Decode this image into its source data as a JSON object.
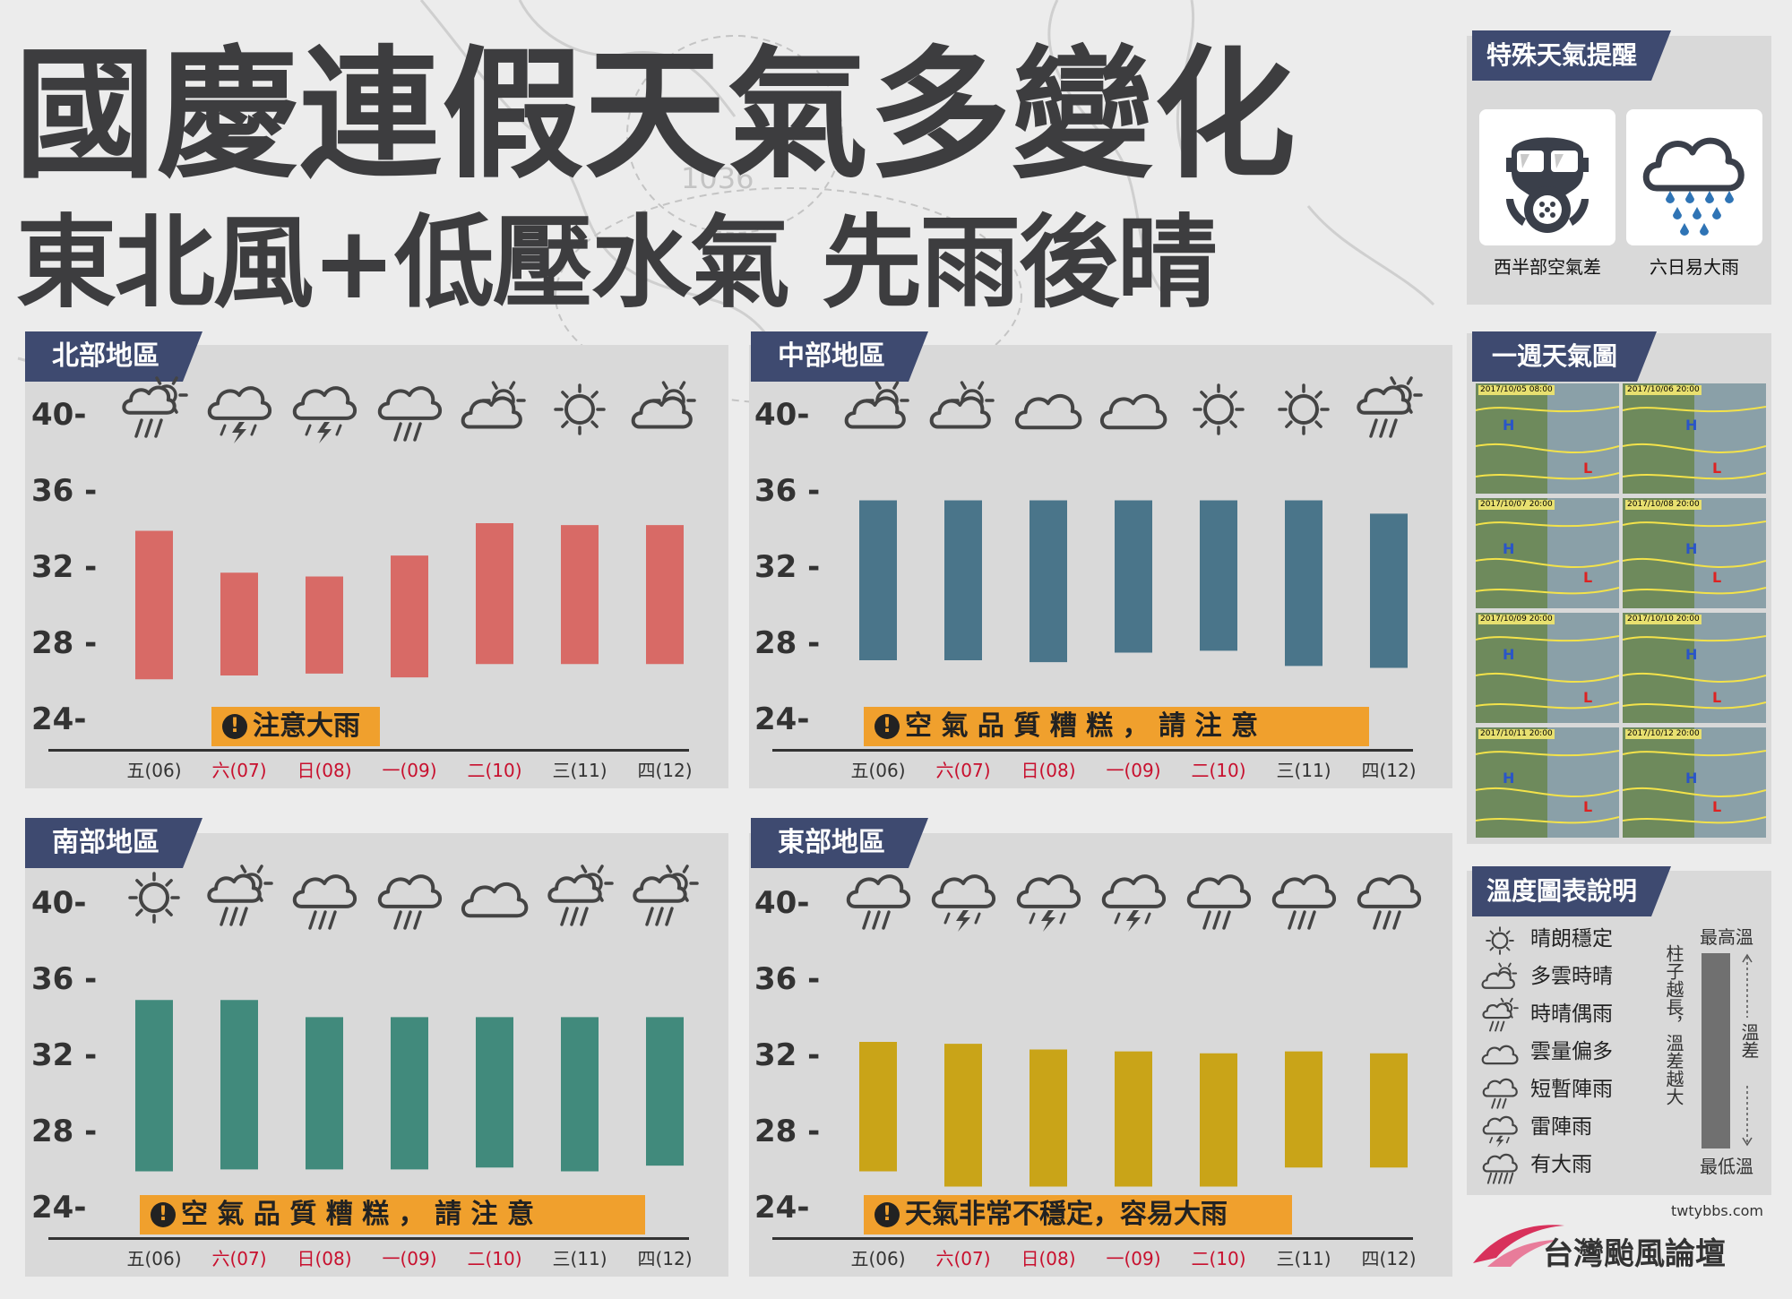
{
  "title": "國慶連假天氣多變化",
  "subtitle": "東北風+低壓水氣 先雨後晴",
  "colors": {
    "north": "#d86a66",
    "central": "#4a758a",
    "south": "#418a7c",
    "east": "#c9a418",
    "tag_bg": "#3e4a70",
    "warning_bg": "#f0a02d",
    "weekend_label": "#c8102e"
  },
  "special_alerts": {
    "title": "特殊天氣提醒",
    "items": [
      {
        "icon": "gas-mask-icon",
        "label": "西半部空氣差"
      },
      {
        "icon": "heavy-rain-cloud-icon",
        "label": "六日易大雨"
      }
    ]
  },
  "weekly_map": {
    "title": "一週天氣圖",
    "dates": [
      "2017/10/05 08:00",
      "2017/10/06 20:00",
      "2017/10/07 20:00",
      "2017/10/08 20:00",
      "2017/10/09 20:00",
      "2017/10/10 20:00",
      "2017/10/11 20:00",
      "2017/10/12 20:00"
    ]
  },
  "legend": {
    "title": "溫度圖表說明",
    "items": [
      {
        "icon": "sunny-icon",
        "label": "晴朗穩定"
      },
      {
        "icon": "partly-cloudy-icon",
        "label": "多雲時晴"
      },
      {
        "icon": "sun-shower-icon",
        "label": "時晴偶雨"
      },
      {
        "icon": "cloudy-icon",
        "label": "雲量偏多"
      },
      {
        "icon": "shower-icon",
        "label": "短暫陣雨"
      },
      {
        "icon": "thunderstorm-icon",
        "label": "雷陣雨"
      },
      {
        "icon": "heavy-rain-icon",
        "label": "有大雨"
      }
    ],
    "max_label": "最高溫",
    "min_label": "最低溫",
    "vertical_note": "柱子越長，溫差越大",
    "range_label": "溫差"
  },
  "branding": {
    "site": "twtybbs.com",
    "name": "台灣颱風論壇"
  },
  "chart_data": [
    {
      "type": "bar",
      "region": "北部地區",
      "color": "#d86a66",
      "categories": [
        "五(06)",
        "六(07)",
        "日(08)",
        "一(09)",
        "二(10)",
        "三(11)",
        "四(12)"
      ],
      "weekend": [
        false,
        true,
        true,
        true,
        true,
        false,
        false
      ],
      "y_ticks": [
        "24-",
        "28 -",
        "32 -",
        "36 -",
        "40-"
      ],
      "ylim": [
        24,
        40
      ],
      "series": [
        {
          "low": [
            26.2,
            26.4,
            26.5,
            26.3,
            27.0,
            27.0,
            27.0
          ],
          "high": [
            34.0,
            31.8,
            31.6,
            32.7,
            34.4,
            34.3,
            34.3
          ]
        }
      ],
      "weather_icons": [
        "sun-shower-icon",
        "thunderstorm-icon",
        "thunderstorm-icon",
        "shower-icon",
        "partly-cloudy-icon",
        "sunny-icon",
        "partly-cloudy-icon"
      ],
      "warning": "注意大雨"
    },
    {
      "type": "bar",
      "region": "中部地區",
      "color": "#4a758a",
      "categories": [
        "五(06)",
        "六(07)",
        "日(08)",
        "一(09)",
        "二(10)",
        "三(11)",
        "四(12)"
      ],
      "weekend": [
        false,
        true,
        true,
        true,
        true,
        false,
        false
      ],
      "y_ticks": [
        "24-",
        "28 -",
        "32 -",
        "36 -",
        "40-"
      ],
      "ylim": [
        24,
        40
      ],
      "series": [
        {
          "low": [
            27.2,
            27.2,
            27.1,
            27.6,
            27.7,
            26.9,
            26.8
          ],
          "high": [
            35.6,
            35.6,
            35.6,
            35.6,
            35.6,
            35.6,
            34.9
          ]
        }
      ],
      "weather_icons": [
        "partly-cloudy-icon",
        "partly-cloudy-icon",
        "cloudy-icon",
        "cloudy-icon",
        "sunny-icon",
        "sunny-icon",
        "sun-shower-icon"
      ],
      "warning": "空 氣 品 質 糟 糕 ， 請 注 意"
    },
    {
      "type": "bar",
      "region": "南部地區",
      "color": "#418a7c",
      "categories": [
        "五(06)",
        "六(07)",
        "日(08)",
        "一(09)",
        "二(10)",
        "三(11)",
        "四(12)"
      ],
      "weekend": [
        false,
        true,
        true,
        true,
        true,
        false,
        false
      ],
      "y_ticks": [
        "24-",
        "28 -",
        "32 -",
        "36 -",
        "40-"
      ],
      "ylim": [
        24,
        40
      ],
      "series": [
        {
          "low": [
            26.0,
            26.1,
            26.1,
            26.1,
            26.2,
            26.0,
            26.3
          ],
          "high": [
            35.0,
            35.0,
            34.1,
            34.1,
            34.1,
            34.1,
            34.1
          ]
        }
      ],
      "weather_icons": [
        "sunny-icon",
        "sun-shower-icon",
        "shower-icon",
        "shower-icon",
        "cloudy-icon",
        "sun-shower-icon",
        "sun-shower-icon"
      ],
      "warning": "空 氣 品 質 糟 糕 ， 請 注 意"
    },
    {
      "type": "bar",
      "region": "東部地區",
      "color": "#c9a418",
      "categories": [
        "五(06)",
        "六(07)",
        "日(08)",
        "一(09)",
        "二(10)",
        "三(11)",
        "四(12)"
      ],
      "weekend": [
        false,
        true,
        true,
        true,
        true,
        false,
        false
      ],
      "y_ticks": [
        "24-",
        "28 -",
        "32 -",
        "36 -",
        "40-"
      ],
      "ylim": [
        24,
        40
      ],
      "series": [
        {
          "low": [
            26.0,
            25.2,
            25.2,
            25.2,
            25.2,
            26.2,
            26.2
          ],
          "high": [
            32.8,
            32.7,
            32.4,
            32.3,
            32.2,
            32.3,
            32.2
          ]
        }
      ],
      "weather_icons": [
        "shower-icon",
        "thunderstorm-icon",
        "thunderstorm-icon",
        "thunderstorm-icon",
        "shower-icon",
        "shower-icon",
        "shower-icon"
      ],
      "warning": "天氣非常不穩定，容易大雨"
    }
  ]
}
